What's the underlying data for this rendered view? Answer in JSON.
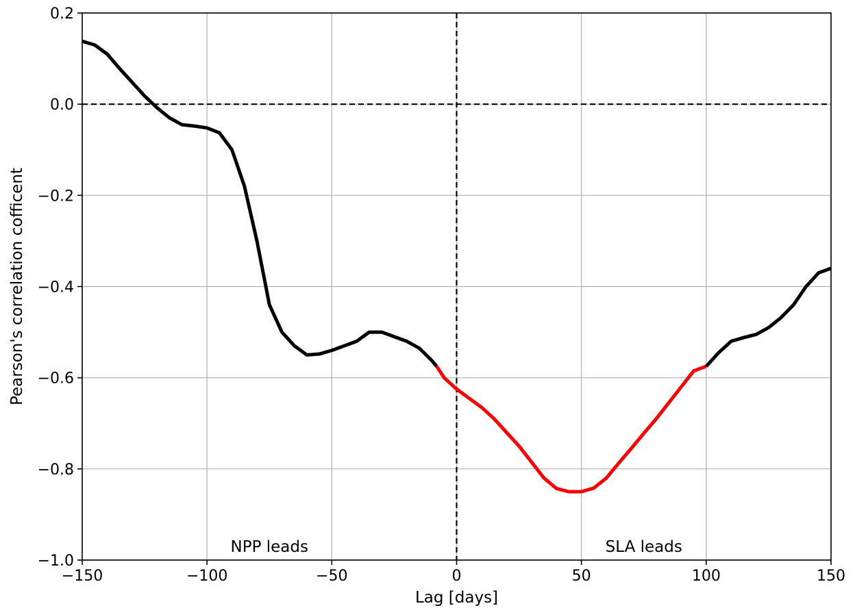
{
  "chart_data": {
    "type": "line",
    "xlabel": "Lag [days]",
    "ylabel": "Pearson's correlation cofficent",
    "xlim": [
      -150,
      150
    ],
    "ylim": [
      -1.0,
      0.2
    ],
    "x_ticks": [
      -150,
      -100,
      -50,
      0,
      50,
      100,
      150
    ],
    "x_tick_labels": [
      "−150",
      "−100",
      "−50",
      "0",
      "50",
      "100",
      "150"
    ],
    "y_ticks": [
      0.2,
      0.0,
      -0.2,
      -0.4,
      -0.6,
      -0.8,
      -1.0
    ],
    "y_tick_labels": [
      "0.2",
      "0.0",
      "−0.2",
      "−0.4",
      "−0.6",
      "−0.8",
      "−1.0"
    ],
    "grid": true,
    "reference_lines": [
      {
        "orientation": "horizontal",
        "value": 0.0,
        "style": "dashed",
        "color": "#000000"
      },
      {
        "orientation": "vertical",
        "value": 0,
        "style": "dashed",
        "color": "#000000"
      }
    ],
    "annotations": [
      {
        "text": "NPP leads",
        "x": -75,
        "y": -0.97
      },
      {
        "text": "SLA leads",
        "x": 75,
        "y": -0.97
      }
    ],
    "series": [
      {
        "color": "#000000",
        "x": [
          -150,
          -145,
          -140,
          -135,
          -130,
          -125,
          -120,
          -115,
          -110,
          -105,
          -100,
          -95,
          -90,
          -85,
          -80,
          -75,
          -70,
          -65,
          -60,
          -55,
          -50,
          -45,
          -40,
          -35,
          -30,
          -25,
          -20,
          -15,
          -10,
          -8
        ],
        "y": [
          0.138,
          0.13,
          0.11,
          0.078,
          0.048,
          0.018,
          -0.008,
          -0.03,
          -0.045,
          -0.048,
          -0.052,
          -0.063,
          -0.1,
          -0.18,
          -0.3,
          -0.44,
          -0.5,
          -0.53,
          -0.55,
          -0.548,
          -0.54,
          -0.53,
          -0.52,
          -0.5,
          -0.5,
          -0.51,
          -0.52,
          -0.535,
          -0.562,
          -0.575
        ]
      },
      {
        "color": "#ff0000",
        "x": [
          -8,
          -5,
          0,
          5,
          10,
          15,
          20,
          25,
          30,
          35,
          40,
          45,
          50,
          55,
          60,
          65,
          70,
          75,
          80,
          85,
          90,
          95,
          100
        ],
        "y": [
          -0.575,
          -0.6,
          -0.625,
          -0.645,
          -0.665,
          -0.69,
          -0.72,
          -0.75,
          -0.785,
          -0.82,
          -0.843,
          -0.85,
          -0.85,
          -0.842,
          -0.82,
          -0.787,
          -0.755,
          -0.722,
          -0.69,
          -0.655,
          -0.62,
          -0.585,
          -0.575
        ]
      },
      {
        "color": "#000000",
        "x": [
          100,
          105,
          110,
          115,
          120,
          125,
          130,
          135,
          140,
          145,
          150
        ],
        "y": [
          -0.575,
          -0.545,
          -0.52,
          -0.512,
          -0.505,
          -0.49,
          -0.468,
          -0.44,
          -0.4,
          -0.37,
          -0.36
        ]
      }
    ]
  }
}
